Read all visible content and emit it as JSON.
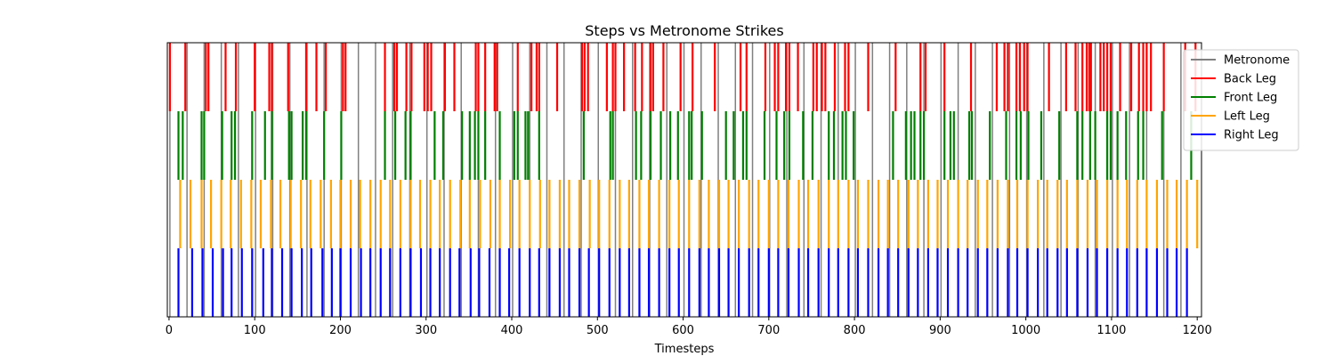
{
  "chart_data": {
    "type": "event-raster",
    "title": "Steps vs Metronome Strikes",
    "xlabel": "Timesteps",
    "ylabel": "",
    "xlim": [
      -2,
      1205
    ],
    "xticks": [
      0,
      100,
      200,
      300,
      400,
      500,
      600,
      700,
      800,
      900,
      1000,
      1100,
      1200
    ],
    "grid": false,
    "legend_position": "upper-right",
    "series": [
      {
        "name": "Metronome",
        "color": "#808080",
        "band": [
          0,
          1
        ],
        "x": [
          1,
          21,
          41,
          61,
          81,
          101,
          121,
          141,
          161,
          181,
          201,
          221,
          241,
          261,
          281,
          301,
          321,
          341,
          361,
          381,
          401,
          421,
          441,
          461,
          481,
          501,
          521,
          541,
          561,
          581,
          601,
          621,
          641,
          661,
          681,
          701,
          721,
          741,
          761,
          781,
          801,
          821,
          841,
          861,
          881,
          901,
          921,
          941,
          961,
          981,
          1001,
          1021,
          1041,
          1061,
          1081,
          1101,
          1121,
          1141,
          1161,
          1181
        ]
      },
      {
        "name": "Back Leg",
        "color": "#ff0000",
        "band": [
          0.75,
          1
        ],
        "x": [
          1,
          19,
          43,
          46,
          66,
          78,
          100,
          117,
          120,
          139,
          160,
          172,
          183,
          203,
          206,
          252,
          263,
          266,
          277,
          283,
          298,
          302,
          306,
          322,
          333,
          358,
          361,
          369,
          380,
          383,
          407,
          423,
          429,
          432,
          453,
          482,
          485,
          489,
          511,
          518,
          521,
          531,
          544,
          552,
          562,
          565,
          577,
          597,
          611,
          637,
          667,
          674,
          696,
          707,
          711,
          720,
          724,
          734,
          752,
          756,
          762,
          766,
          777,
          789,
          793,
          816,
          848,
          877,
          883,
          905,
          936,
          966,
          975,
          979,
          989,
          993,
          998,
          1002,
          1027,
          1047,
          1058,
          1066,
          1071,
          1074,
          1076,
          1087,
          1091,
          1095,
          1099,
          1110,
          1123,
          1132,
          1137,
          1141,
          1146,
          1161,
          1186,
          1198
        ]
      },
      {
        "name": "Front Leg",
        "color": "#008000",
        "band": [
          0.5,
          0.75
        ],
        "x": [
          11,
          16,
          38,
          41,
          62,
          73,
          77,
          97,
          112,
          120,
          140,
          143,
          156,
          160,
          181,
          201,
          252,
          264,
          276,
          282,
          310,
          320,
          342,
          351,
          357,
          361,
          369,
          386,
          403,
          407,
          416,
          419,
          432,
          484,
          515,
          518,
          545,
          551,
          562,
          574,
          585,
          594,
          607,
          610,
          622,
          650,
          659,
          670,
          674,
          695,
          709,
          718,
          724,
          740,
          751,
          770,
          776,
          786,
          790,
          799,
          845,
          860,
          866,
          870,
          877,
          881,
          905,
          912,
          916,
          934,
          937,
          958,
          977,
          989,
          994,
          1003,
          1018,
          1039,
          1060,
          1066,
          1075,
          1081,
          1095,
          1099,
          1107,
          1117,
          1131,
          1137,
          1159,
          1193
        ]
      },
      {
        "name": "Left Leg",
        "color": "#ffa500",
        "band": [
          0.25,
          0.5
        ],
        "x": [
          13,
          25,
          38,
          49,
          61,
          72,
          84,
          96,
          107,
          119,
          130,
          142,
          154,
          165,
          177,
          189,
          200,
          212,
          223,
          235,
          247,
          258,
          270,
          282,
          293,
          305,
          316,
          328,
          340,
          351,
          363,
          375,
          386,
          398,
          409,
          421,
          433,
          444,
          456,
          467,
          479,
          491,
          502,
          514,
          526,
          537,
          549,
          560,
          572,
          584,
          595,
          607,
          619,
          630,
          642,
          653,
          665,
          677,
          688,
          700,
          711,
          723,
          735,
          746,
          758,
          770,
          781,
          793,
          804,
          816,
          828,
          839,
          851,
          863,
          874,
          886,
          897,
          909,
          921,
          932,
          944,
          955,
          967,
          979,
          990,
          1002,
          1014,
          1025,
          1037,
          1048,
          1060,
          1072,
          1083,
          1095,
          1107,
          1118,
          1130,
          1141,
          1153,
          1165,
          1176,
          1188,
          1200
        ]
      },
      {
        "name": "Right Leg",
        "color": "#0000ff",
        "band": [
          0,
          0.25
        ],
        "x": [
          11,
          27,
          39,
          51,
          63,
          73,
          85,
          97,
          110,
          120,
          132,
          143,
          155,
          166,
          179,
          190,
          200,
          212,
          224,
          235,
          247,
          258,
          270,
          282,
          294,
          305,
          316,
          328,
          339,
          352,
          362,
          374,
          386,
          397,
          409,
          421,
          432,
          444,
          456,
          467,
          479,
          490,
          502,
          514,
          526,
          537,
          549,
          560,
          572,
          584,
          595,
          607,
          619,
          630,
          642,
          653,
          665,
          677,
          688,
          700,
          711,
          723,
          735,
          746,
          758,
          770,
          781,
          793,
          804,
          816,
          828,
          839,
          851,
          863,
          874,
          886,
          897,
          909,
          921,
          932,
          944,
          955,
          967,
          979,
          990,
          1002,
          1014,
          1025,
          1037,
          1048,
          1060,
          1072,
          1083,
          1095,
          1107,
          1118,
          1130,
          1141,
          1153,
          1165,
          1176,
          1188
        ]
      }
    ]
  }
}
